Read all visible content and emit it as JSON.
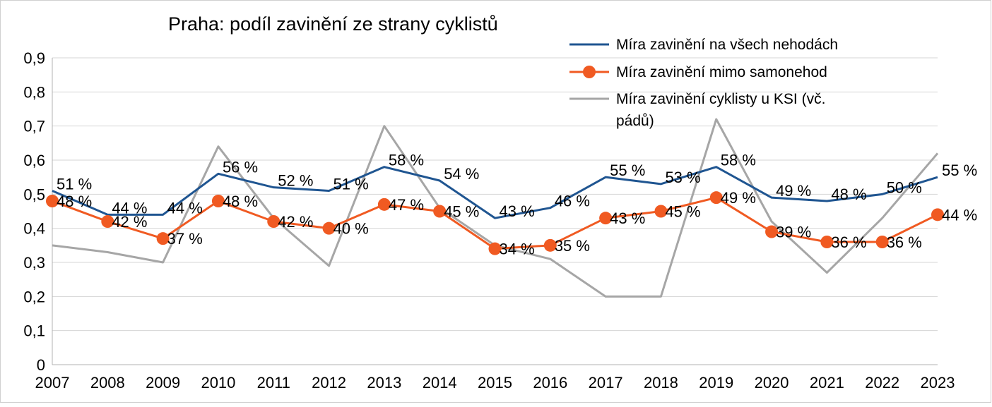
{
  "chart_data": {
    "type": "line",
    "title": "Praha: podíl zavinění ze strany cyklistů",
    "xlabel": "",
    "ylabel": "",
    "ylim": [
      0,
      0.9
    ],
    "yticks": [
      0,
      0.1,
      0.2,
      0.3,
      0.4,
      0.5,
      0.6,
      0.7,
      0.8,
      0.9
    ],
    "ytick_labels": [
      "0",
      "0,1",
      "0,2",
      "0,3",
      "0,4",
      "0,5",
      "0,6",
      "0,7",
      "0,8",
      "0,9"
    ],
    "grid": true,
    "legend_position": "top-right",
    "categories": [
      "2007",
      "2008",
      "2009",
      "2010",
      "2011",
      "2012",
      "2013",
      "2014",
      "2015",
      "2016",
      "2017",
      "2018",
      "2019",
      "2020",
      "2021",
      "2022",
      "2023"
    ],
    "series": [
      {
        "name": "Míra zavinění na všech nehodách",
        "color": "#1f5591",
        "marker": "none",
        "values": [
          0.51,
          0.44,
          0.44,
          0.56,
          0.52,
          0.51,
          0.58,
          0.54,
          0.43,
          0.46,
          0.55,
          0.53,
          0.58,
          0.49,
          0.48,
          0.5,
          0.55
        ],
        "labels": [
          "51 %",
          "44 %",
          "44 %",
          "56 %",
          "52 %",
          "51 %",
          "58 %",
          "54 %",
          "43 %",
          "46 %",
          "55 %",
          "53 %",
          "58 %",
          "49 %",
          "48 %",
          "50 %",
          "55 %"
        ]
      },
      {
        "name": "Míra zavinění mimo samonehod",
        "color": "#f05a22",
        "marker": "circle",
        "values": [
          0.48,
          0.42,
          0.37,
          0.48,
          0.42,
          0.4,
          0.47,
          0.45,
          0.34,
          0.35,
          0.43,
          0.45,
          0.49,
          0.39,
          0.36,
          0.36,
          0.44
        ],
        "labels": [
          "48 %",
          "42 %",
          "37 %",
          "48 %",
          "42 %",
          "40 %",
          "47 %",
          "45 %",
          "34 %",
          "35 %",
          "43 %",
          "45 %",
          "49 %",
          "39 %",
          "36 %",
          "36 %",
          "44 %"
        ]
      },
      {
        "name": "Míra zavinění cyklisty u KSI (vč. pádů)",
        "name_lines": [
          "Míra zavinění cyklisty u KSI (vč.",
          "pádů)"
        ],
        "color": "#a6a6a6",
        "marker": "none",
        "values": [
          0.35,
          0.33,
          0.3,
          0.64,
          0.43,
          0.29,
          0.7,
          0.46,
          0.35,
          0.31,
          0.2,
          0.2,
          0.72,
          0.42,
          0.27,
          0.43,
          0.62
        ],
        "labels": []
      }
    ]
  }
}
